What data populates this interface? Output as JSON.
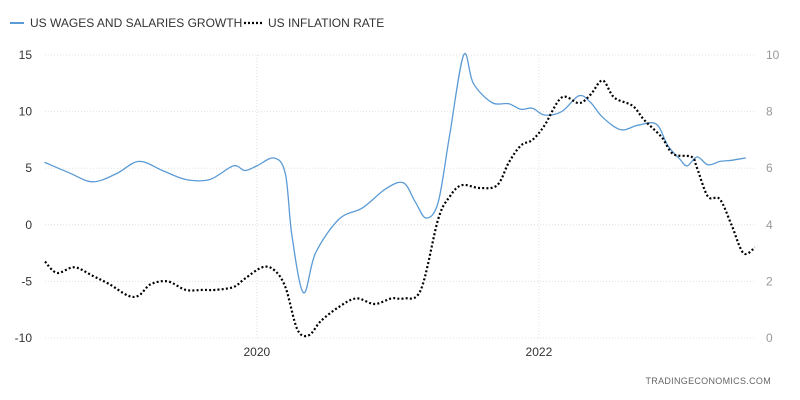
{
  "chart_data": {
    "type": "line",
    "title": "",
    "source": "TRADINGECONOMICS.COM",
    "grid": true,
    "legend_position": "top-left",
    "x_range": [
      "2018-07-01",
      "2023-07-15"
    ],
    "x_ticks": [
      {
        "date": "2020-01-01",
        "label": "2020"
      },
      {
        "date": "2022-01-01",
        "label": "2022"
      }
    ],
    "y_left": {
      "range": [
        -10,
        15
      ],
      "ticks": [
        15,
        10,
        5,
        0,
        -5,
        -10
      ]
    },
    "y_right": {
      "range": [
        0,
        10
      ],
      "ticks": [
        10,
        8,
        6,
        4,
        2,
        0
      ]
    },
    "series": [
      {
        "name": "US WAGES AND SALARIES GROWTH",
        "axis": "left",
        "style": "solid",
        "color": "#5b9bd5",
        "points": [
          [
            "2018-07-01",
            5.5
          ],
          [
            "2018-09-01",
            4.6
          ],
          [
            "2018-11-01",
            3.8
          ],
          [
            "2019-01-01",
            4.5
          ],
          [
            "2019-03-01",
            5.6
          ],
          [
            "2019-05-01",
            4.8
          ],
          [
            "2019-07-01",
            4.0
          ],
          [
            "2019-09-01",
            4.0
          ],
          [
            "2019-11-01",
            5.2
          ],
          [
            "2019-12-01",
            4.8
          ],
          [
            "2020-01-01",
            5.2
          ],
          [
            "2020-02-15",
            5.9
          ],
          [
            "2020-03-15",
            4.5
          ],
          [
            "2020-04-01",
            -1.0
          ],
          [
            "2020-05-01",
            -6.0
          ],
          [
            "2020-06-01",
            -2.5
          ],
          [
            "2020-08-01",
            0.5
          ],
          [
            "2020-10-01",
            1.5
          ],
          [
            "2020-12-01",
            3.2
          ],
          [
            "2021-01-15",
            3.7
          ],
          [
            "2021-02-15",
            2.0
          ],
          [
            "2021-03-15",
            0.6
          ],
          [
            "2021-04-15",
            2.0
          ],
          [
            "2021-05-15",
            8.0
          ],
          [
            "2021-06-20",
            15.0
          ],
          [
            "2021-07-15",
            12.5
          ],
          [
            "2021-09-01",
            10.8
          ],
          [
            "2021-10-15",
            10.7
          ],
          [
            "2021-11-15",
            10.2
          ],
          [
            "2021-12-15",
            10.3
          ],
          [
            "2022-01-15",
            9.7
          ],
          [
            "2022-03-01",
            10.0
          ],
          [
            "2022-04-15",
            11.4
          ],
          [
            "2022-05-15",
            10.8
          ],
          [
            "2022-06-15",
            9.5
          ],
          [
            "2022-08-01",
            8.4
          ],
          [
            "2022-09-15",
            8.8
          ],
          [
            "2022-11-01",
            8.9
          ],
          [
            "2022-12-01",
            7.0
          ],
          [
            "2023-01-01",
            5.8
          ],
          [
            "2023-01-20",
            5.2
          ],
          [
            "2023-02-15",
            6.0
          ],
          [
            "2023-03-15",
            5.3
          ],
          [
            "2023-04-15",
            5.6
          ],
          [
            "2023-05-15",
            5.7
          ],
          [
            "2023-06-20",
            5.9
          ]
        ]
      },
      {
        "name": "US INFLATION RATE",
        "axis": "right",
        "style": "dotted",
        "color": "#000000",
        "points": [
          [
            "2018-07-01",
            2.7
          ],
          [
            "2018-08-01",
            2.3
          ],
          [
            "2018-09-15",
            2.5
          ],
          [
            "2018-11-01",
            2.2
          ],
          [
            "2018-12-15",
            1.9
          ],
          [
            "2019-02-01",
            1.5
          ],
          [
            "2019-03-01",
            1.5
          ],
          [
            "2019-04-01",
            1.9
          ],
          [
            "2019-05-15",
            2.0
          ],
          [
            "2019-07-01",
            1.7
          ],
          [
            "2019-08-15",
            1.7
          ],
          [
            "2019-09-15",
            1.7
          ],
          [
            "2019-11-01",
            1.8
          ],
          [
            "2019-12-01",
            2.1
          ],
          [
            "2020-01-15",
            2.5
          ],
          [
            "2020-02-15",
            2.4
          ],
          [
            "2020-03-15",
            1.8
          ],
          [
            "2020-04-15",
            0.3
          ],
          [
            "2020-05-15",
            0.1
          ],
          [
            "2020-06-15",
            0.6
          ],
          [
            "2020-08-01",
            1.1
          ],
          [
            "2020-09-15",
            1.4
          ],
          [
            "2020-11-01",
            1.2
          ],
          [
            "2020-12-15",
            1.4
          ],
          [
            "2021-01-15",
            1.4
          ],
          [
            "2021-03-01",
            1.7
          ],
          [
            "2021-04-15",
            4.2
          ],
          [
            "2021-05-15",
            5.0
          ],
          [
            "2021-06-15",
            5.4
          ],
          [
            "2021-08-01",
            5.3
          ],
          [
            "2021-09-15",
            5.4
          ],
          [
            "2021-10-15",
            6.2
          ],
          [
            "2021-11-15",
            6.8
          ],
          [
            "2021-12-15",
            7.0
          ],
          [
            "2022-01-15",
            7.5
          ],
          [
            "2022-03-01",
            8.5
          ],
          [
            "2022-04-15",
            8.3
          ],
          [
            "2022-05-15",
            8.6
          ],
          [
            "2022-06-15",
            9.1
          ],
          [
            "2022-07-15",
            8.5
          ],
          [
            "2022-09-01",
            8.2
          ],
          [
            "2022-10-01",
            7.7
          ],
          [
            "2022-11-15",
            7.1
          ],
          [
            "2022-12-15",
            6.5
          ],
          [
            "2023-02-01",
            6.4
          ],
          [
            "2023-02-15",
            6.0
          ],
          [
            "2023-03-15",
            5.0
          ],
          [
            "2023-04-15",
            4.9
          ],
          [
            "2023-05-15",
            4.0
          ],
          [
            "2023-06-15",
            3.0
          ],
          [
            "2023-07-15",
            3.2
          ]
        ]
      }
    ]
  }
}
